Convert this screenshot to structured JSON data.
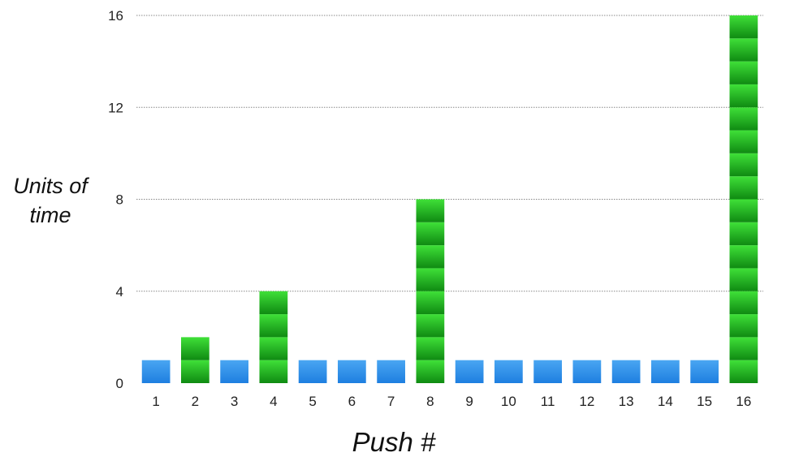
{
  "chart_data": {
    "type": "bar",
    "title": "",
    "xlabel": "Push #",
    "ylabel_lines": [
      "Units of",
      "time"
    ],
    "categories": [
      "1",
      "2",
      "3",
      "4",
      "5",
      "6",
      "7",
      "8",
      "9",
      "10",
      "11",
      "12",
      "13",
      "14",
      "15",
      "16"
    ],
    "values": [
      1,
      2,
      1,
      4,
      1,
      1,
      1,
      8,
      1,
      1,
      1,
      1,
      1,
      1,
      1,
      16
    ],
    "ylim": [
      0,
      16
    ],
    "yticks": [
      "0",
      "4",
      "8",
      "12",
      "16"
    ],
    "grid": true,
    "legend": "none",
    "colors": {
      "single_unit": "#1e7fe0",
      "single_unit_light": "#4aa6f2",
      "multi_unit": "#22b81e",
      "multi_unit_light": "#3fe038",
      "multi_unit_dark": "#0f8a12",
      "grid": "#888888"
    }
  }
}
